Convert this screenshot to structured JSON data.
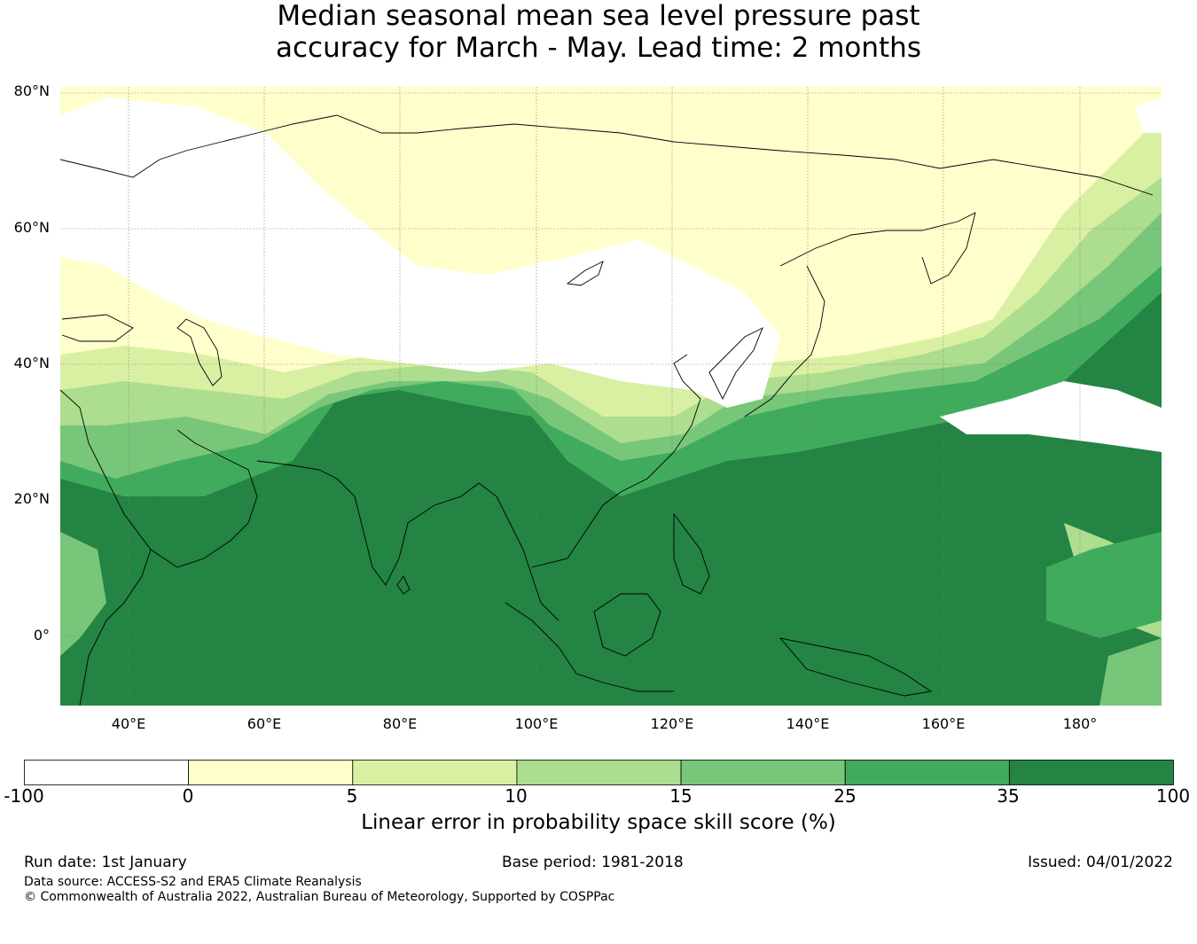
{
  "title": {
    "line1": "Median seasonal mean sea level pressure past",
    "line2": "accuracy for March - May. Lead time: 2 months"
  },
  "map": {
    "lat_labels": [
      "80°N",
      "60°N",
      "40°N",
      "20°N",
      "0°"
    ],
    "lon_labels": [
      "40°E",
      "60°E",
      "80°E",
      "100°E",
      "120°E",
      "140°E",
      "160°E",
      "180°"
    ],
    "lon_range": [
      30,
      192
    ],
    "lat_range": [
      -10,
      81
    ],
    "colors": {
      "missing_or_below_0": "#ffffff",
      "ocean_deep": "#23873f",
      "land_outline": "#000000",
      "gridline": "#555555"
    }
  },
  "colorbar": {
    "bins": [
      {
        "from": "-100",
        "to": "0",
        "color": "#ffffff"
      },
      {
        "from": "0",
        "to": "5",
        "color": "#ffffcc"
      },
      {
        "from": "5",
        "to": "10",
        "color": "#d9f0a3"
      },
      {
        "from": "10",
        "to": "15",
        "color": "#addd8e"
      },
      {
        "from": "15",
        "to": "25",
        "color": "#78c679"
      },
      {
        "from": "25",
        "to": "35",
        "color": "#41ab5d"
      },
      {
        "from": "35",
        "to": "100",
        "color": "#238443"
      }
    ],
    "tick_labels": [
      "-100",
      "0",
      "5",
      "10",
      "15",
      "25",
      "35",
      "100"
    ],
    "title": "Linear error in probability space skill score (%)"
  },
  "footer": {
    "run_date": "Run date: 1st January",
    "base_period": "Base period: 1981-2018",
    "issued": "Issued: 04/01/2022",
    "data_source": "Data source: ACCESS-S2 and ERA5 Climate Reanalysis",
    "copyright": "© Commonwealth of Australia 2022, Australian Bureau of Meteorology, Supported by COSPPac"
  }
}
